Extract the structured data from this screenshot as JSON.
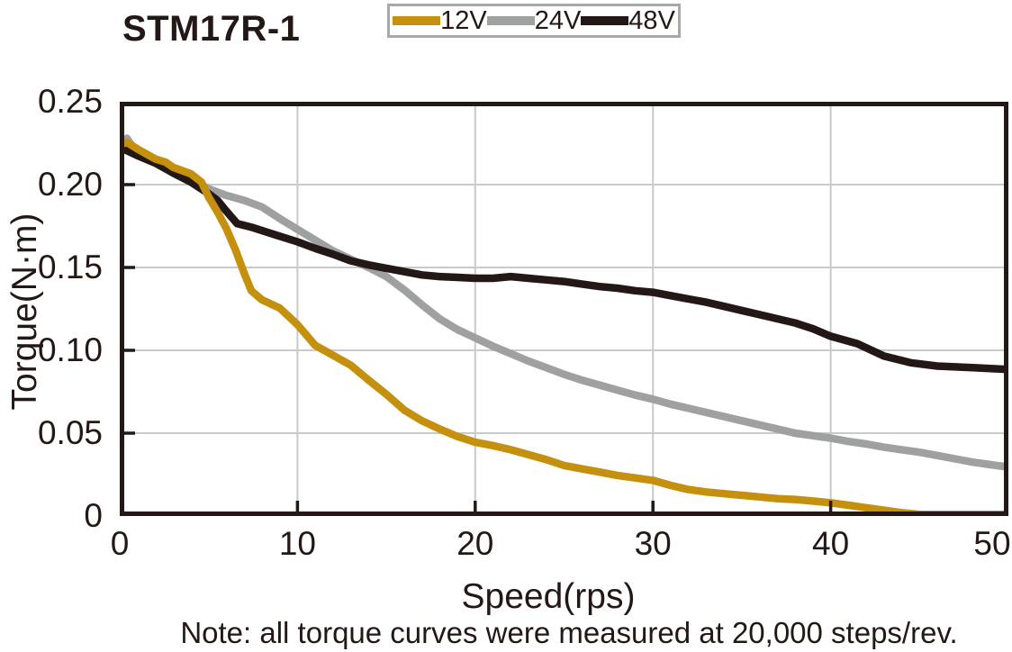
{
  "title": "STM17R-1",
  "note": "Note: all torque curves were measured at 20,000 steps/rev.",
  "colors": {
    "series_12v": "#c6900f",
    "series_24v": "#9fa0a0",
    "series_48v": "#231815",
    "grid": "#c8c9ca",
    "axis": "#231815",
    "text": "#231815",
    "legend_border": "#a7a8a8",
    "background": "#ffffff"
  },
  "chart_data": {
    "type": "line",
    "title": "STM17R-1",
    "xlabel": "Speed(rps)",
    "ylabel": "Torque(N·m)",
    "xlim": [
      0,
      50
    ],
    "ylim": [
      0,
      0.25
    ],
    "grid": true,
    "legend_position": "top-center",
    "x_ticks": [
      0,
      10,
      20,
      30,
      40,
      50
    ],
    "x_tick_labels": [
      "0",
      "10",
      "20",
      "30",
      "40",
      "50"
    ],
    "y_ticks": [
      0,
      0.05,
      0.1,
      0.15,
      0.2,
      0.25
    ],
    "y_tick_labels": [
      "0",
      "0.05",
      "0.10",
      "0.15",
      "0.20",
      "0.25"
    ],
    "series": [
      {
        "name": "12V",
        "color": "#c6900f",
        "draw_order": 3,
        "points": [
          [
            0,
            0.224
          ],
          [
            0.4,
            0.2255
          ],
          [
            1,
            0.2215
          ],
          [
            2,
            0.2155
          ],
          [
            2.6,
            0.2135
          ],
          [
            3,
            0.2105
          ],
          [
            4,
            0.2065
          ],
          [
            4.6,
            0.2015
          ],
          [
            5,
            0.1925
          ],
          [
            5.5,
            0.1835
          ],
          [
            6,
            0.1735
          ],
          [
            6.5,
            0.161
          ],
          [
            7,
            0.1465
          ],
          [
            7.4,
            0.136
          ],
          [
            8,
            0.1305
          ],
          [
            9,
            0.1255
          ],
          [
            10,
            0.1155
          ],
          [
            11,
            0.103
          ],
          [
            12,
            0.097
          ],
          [
            13,
            0.091
          ],
          [
            14,
            0.082
          ],
          [
            15,
            0.0735
          ],
          [
            16,
            0.064
          ],
          [
            17,
            0.0575
          ],
          [
            18,
            0.0525
          ],
          [
            19,
            0.048
          ],
          [
            20,
            0.0445
          ],
          [
            21,
            0.0425
          ],
          [
            22,
            0.04
          ],
          [
            23,
            0.037
          ],
          [
            24,
            0.034
          ],
          [
            25,
            0.0305
          ],
          [
            26,
            0.0285
          ],
          [
            27,
            0.0265
          ],
          [
            28,
            0.0245
          ],
          [
            29,
            0.023
          ],
          [
            30,
            0.0215
          ],
          [
            31,
            0.0185
          ],
          [
            32,
            0.016
          ],
          [
            33,
            0.0145
          ],
          [
            34,
            0.0135
          ],
          [
            35,
            0.0125
          ],
          [
            36,
            0.0115
          ],
          [
            37,
            0.0105
          ],
          [
            38,
            0.01
          ],
          [
            39,
            0.009
          ],
          [
            40,
            0.008
          ],
          [
            41,
            0.0065
          ],
          [
            42,
            0.005
          ],
          [
            43,
            0.0035
          ],
          [
            44,
            0.002
          ],
          [
            45,
            0.001
          ],
          [
            46,
            0.001
          ],
          [
            48,
            0.001
          ],
          [
            50,
            0.001
          ]
        ]
      },
      {
        "name": "24V",
        "color": "#9fa0a0",
        "draw_order": 1,
        "points": [
          [
            0,
            0.2245
          ],
          [
            0.4,
            0.228
          ],
          [
            1,
            0.2185
          ],
          [
            2,
            0.2135
          ],
          [
            3,
            0.2075
          ],
          [
            4,
            0.2035
          ],
          [
            5,
            0.1975
          ],
          [
            6,
            0.1935
          ],
          [
            7,
            0.1905
          ],
          [
            8,
            0.1865
          ],
          [
            9,
            0.1795
          ],
          [
            10,
            0.173
          ],
          [
            11,
            0.1665
          ],
          [
            12,
            0.16
          ],
          [
            13,
            0.155
          ],
          [
            14,
            0.15
          ],
          [
            15,
            0.1445
          ],
          [
            16,
            0.1365
          ],
          [
            17,
            0.1275
          ],
          [
            18,
            0.119
          ],
          [
            19,
            0.1125
          ],
          [
            20,
            0.1075
          ],
          [
            21,
            0.1025
          ],
          [
            22,
            0.098
          ],
          [
            23,
            0.0935
          ],
          [
            24,
            0.0895
          ],
          [
            25,
            0.0855
          ],
          [
            26,
            0.082
          ],
          [
            27,
            0.079
          ],
          [
            28,
            0.076
          ],
          [
            29,
            0.073
          ],
          [
            30,
            0.0705
          ],
          [
            31,
            0.0675
          ],
          [
            32,
            0.065
          ],
          [
            33,
            0.0625
          ],
          [
            34,
            0.06
          ],
          [
            35,
            0.0575
          ],
          [
            36,
            0.055
          ],
          [
            37,
            0.0525
          ],
          [
            38,
            0.05
          ],
          [
            39,
            0.0485
          ],
          [
            40,
            0.047
          ],
          [
            41,
            0.045
          ],
          [
            42,
            0.0435
          ],
          [
            43,
            0.0415
          ],
          [
            44,
            0.04
          ],
          [
            45,
            0.0385
          ],
          [
            46,
            0.0365
          ],
          [
            47,
            0.0345
          ],
          [
            48,
            0.0325
          ],
          [
            49,
            0.031
          ],
          [
            50,
            0.0295
          ]
        ]
      },
      {
        "name": "48V",
        "color": "#231815",
        "draw_order": 2,
        "points": [
          [
            0,
            0.2225
          ],
          [
            1,
            0.2175
          ],
          [
            2,
            0.213
          ],
          [
            3,
            0.207
          ],
          [
            4,
            0.2015
          ],
          [
            5,
            0.1945
          ],
          [
            5.5,
            0.1905
          ],
          [
            6,
            0.184
          ],
          [
            6.6,
            0.1765
          ],
          [
            7.5,
            0.174
          ],
          [
            8.8,
            0.1695
          ],
          [
            10,
            0.1655
          ],
          [
            11,
            0.1615
          ],
          [
            12,
            0.158
          ],
          [
            13,
            0.154
          ],
          [
            14,
            0.1515
          ],
          [
            15,
            0.1495
          ],
          [
            16,
            0.1475
          ],
          [
            17,
            0.1455
          ],
          [
            18,
            0.1445
          ],
          [
            19,
            0.144
          ],
          [
            20,
            0.1435
          ],
          [
            21,
            0.1435
          ],
          [
            22,
            0.1445
          ],
          [
            23,
            0.1435
          ],
          [
            24,
            0.1425
          ],
          [
            25,
            0.1415
          ],
          [
            26,
            0.14
          ],
          [
            27,
            0.1385
          ],
          [
            28,
            0.1375
          ],
          [
            29,
            0.136
          ],
          [
            30,
            0.135
          ],
          [
            31,
            0.133
          ],
          [
            32,
            0.131
          ],
          [
            33,
            0.129
          ],
          [
            34,
            0.1265
          ],
          [
            35,
            0.124
          ],
          [
            36,
            0.1215
          ],
          [
            37,
            0.119
          ],
          [
            38,
            0.1165
          ],
          [
            39,
            0.113
          ],
          [
            40,
            0.1085
          ],
          [
            41.5,
            0.104
          ],
          [
            43,
            0.0965
          ],
          [
            44.5,
            0.0925
          ],
          [
            46,
            0.0905
          ],
          [
            48,
            0.0895
          ],
          [
            50,
            0.0885
          ]
        ]
      }
    ]
  }
}
